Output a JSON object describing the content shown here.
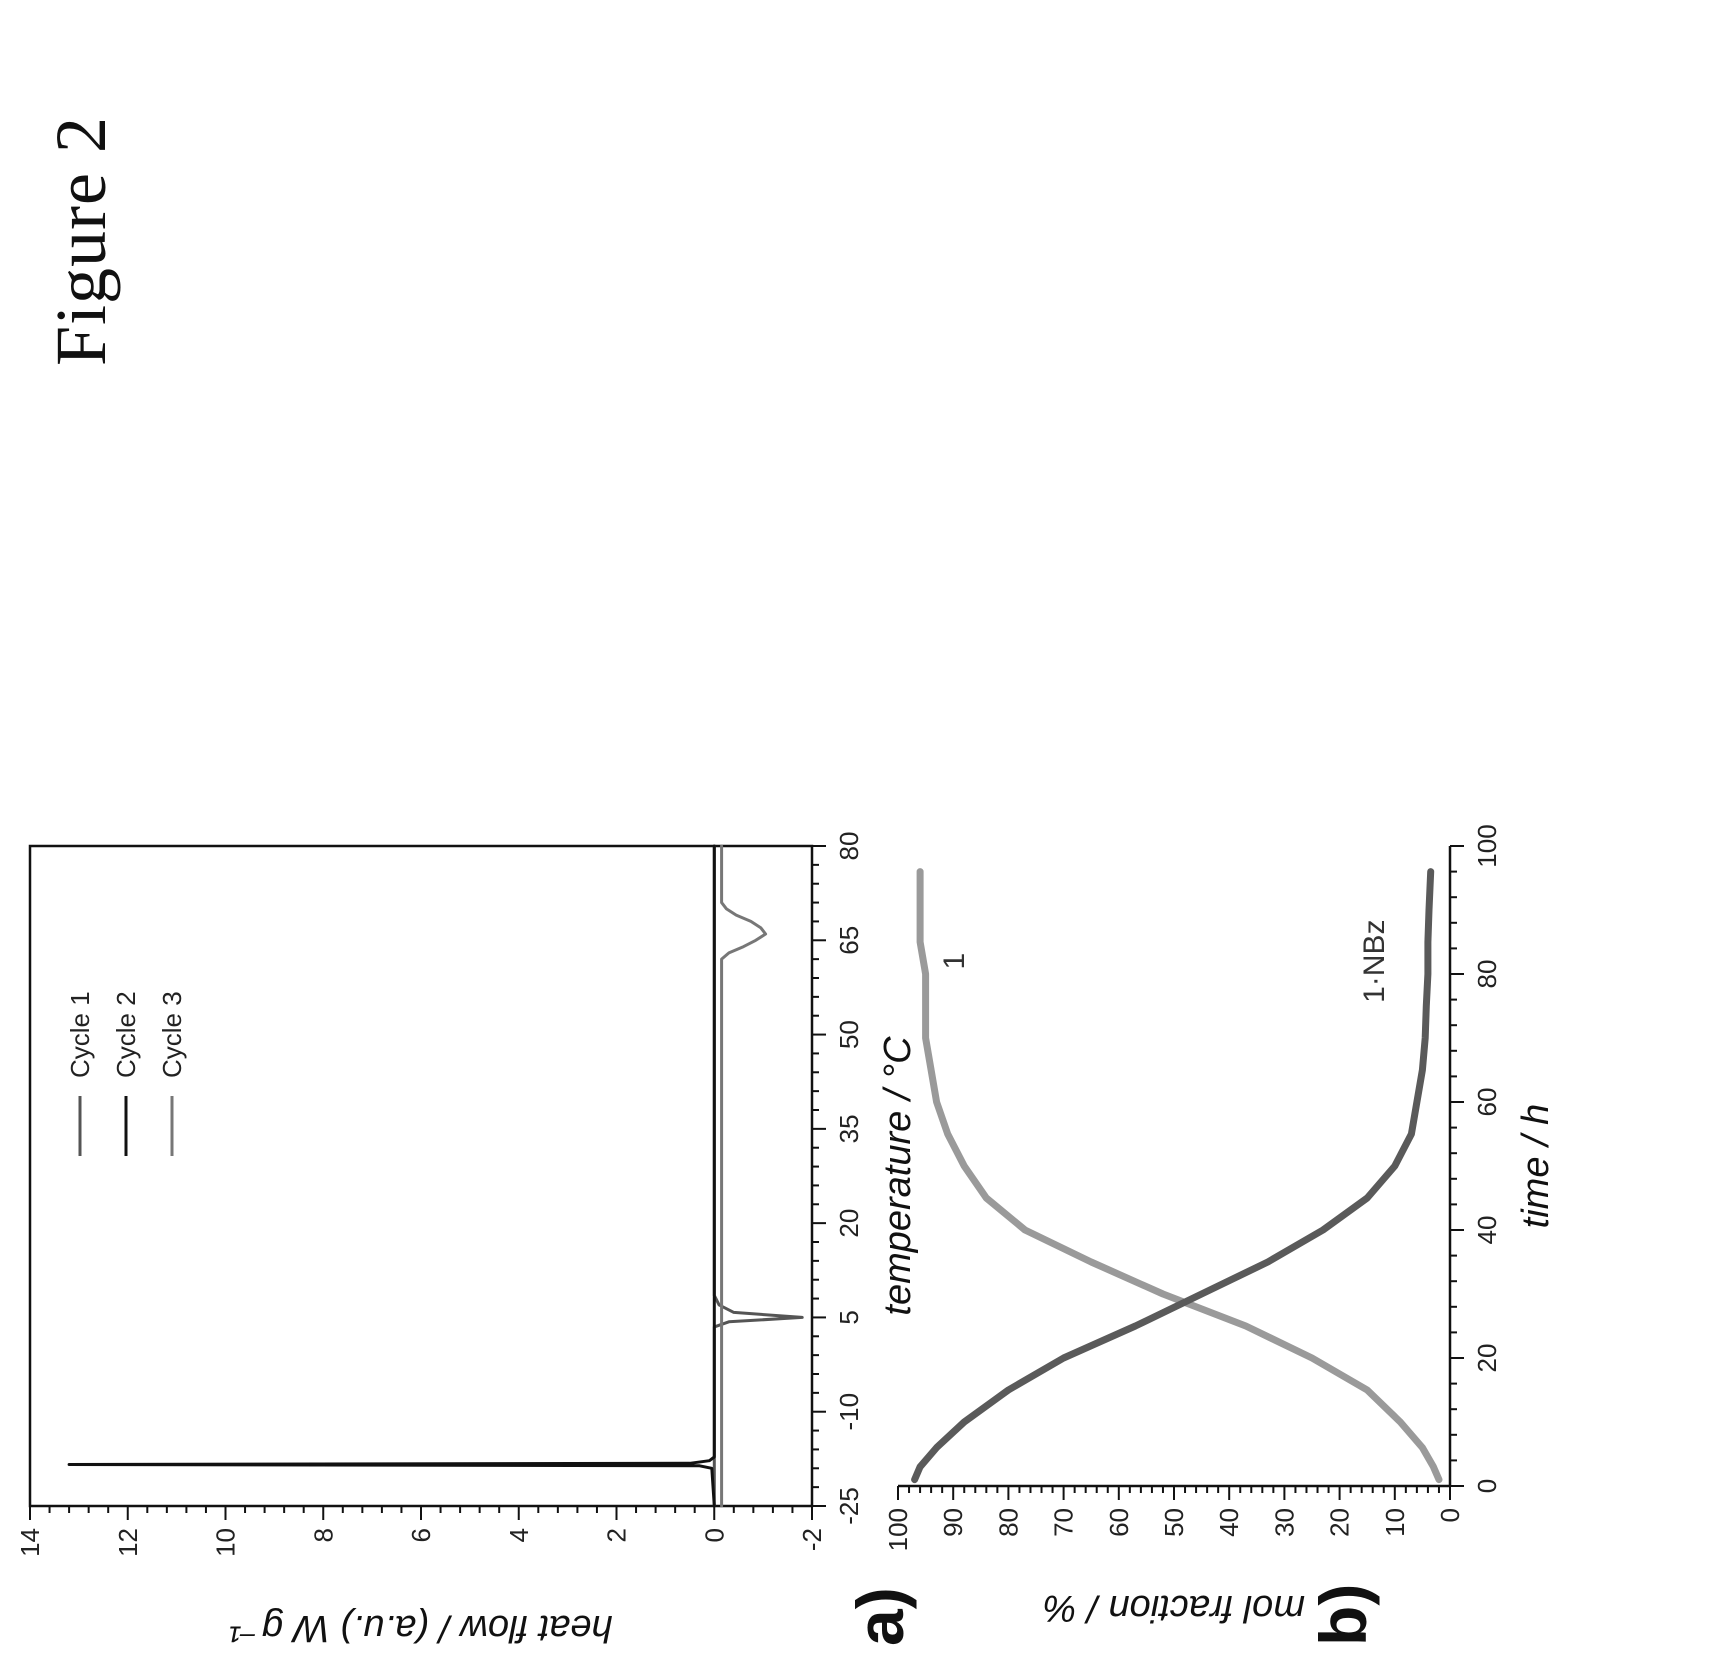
{
  "figure_caption": "Figure 2",
  "panel_a": {
    "label": "a)"
  },
  "panel_b": {
    "label": "b)"
  },
  "chart_data": [
    {
      "type": "line",
      "panel": "a)",
      "xlabel": "temperature / °C",
      "ylabel": "heat flow / (a.u.) W g⁻¹",
      "xlim": [
        -25,
        80
      ],
      "ylim": [
        -2,
        14
      ],
      "xticks": [
        -25,
        -10,
        5,
        20,
        35,
        50,
        65,
        80
      ],
      "yticks": [
        -2,
        0,
        2,
        4,
        6,
        8,
        10,
        12,
        14
      ],
      "legend_position": "top-right",
      "series": [
        {
          "name": "Cycle 1",
          "color": "#555555",
          "x": [
            -25,
            3.5,
            4.3,
            5,
            5.8,
            7,
            8.5,
            80
          ],
          "y": [
            0,
            0,
            -0.3,
            -1.8,
            -0.4,
            -0.1,
            0,
            0
          ]
        },
        {
          "name": "Cycle 2",
          "color": "#111111",
          "x": [
            -25,
            -19,
            -18.6,
            -18.4,
            -18.2,
            -17.8,
            -17.2,
            80
          ],
          "y": [
            0,
            0.05,
            0.3,
            13.2,
            0.5,
            0.1,
            0,
            0
          ]
        },
        {
          "name": "Cycle 3",
          "color": "#777777",
          "x": [
            -25,
            62,
            63,
            64,
            65,
            66,
            67,
            68,
            69,
            70,
            71,
            80
          ],
          "y": [
            -0.15,
            -0.15,
            -0.3,
            -0.6,
            -0.85,
            -1.05,
            -0.95,
            -0.75,
            -0.45,
            -0.25,
            -0.15,
            -0.15
          ]
        }
      ]
    },
    {
      "type": "line",
      "panel": "b)",
      "xlabel": "time / h",
      "ylabel": "mol fraction / %",
      "xlim": [
        0,
        100
      ],
      "ylim": [
        0,
        100
      ],
      "xticks": [
        0,
        20,
        40,
        60,
        80,
        100
      ],
      "yticks": [
        0,
        10,
        20,
        30,
        40,
        50,
        60,
        70,
        80,
        90,
        100
      ],
      "series": [
        {
          "name": "1",
          "color": "#9a9a9a",
          "x": [
            1,
            3,
            6,
            10,
            15,
            20,
            25,
            30,
            35,
            40,
            45,
            50,
            55,
            60,
            65,
            70,
            75,
            80,
            85,
            90,
            96
          ],
          "y": [
            2,
            3,
            5,
            9,
            15,
            25,
            37,
            52,
            65,
            77,
            84,
            88,
            91,
            93,
            94,
            95,
            95,
            95,
            96,
            96,
            96
          ]
        },
        {
          "name": "1·NBz",
          "color": "#5a5a5a",
          "x": [
            1,
            3,
            6,
            10,
            15,
            20,
            25,
            30,
            35,
            40,
            45,
            50,
            55,
            60,
            65,
            70,
            75,
            80,
            85,
            90,
            96
          ],
          "y": [
            97,
            96,
            93,
            88,
            80,
            70,
            57,
            45,
            33,
            23,
            15,
            10,
            7,
            6,
            5,
            4.5,
            4.3,
            4,
            4,
            3.8,
            3.5
          ]
        }
      ]
    }
  ]
}
